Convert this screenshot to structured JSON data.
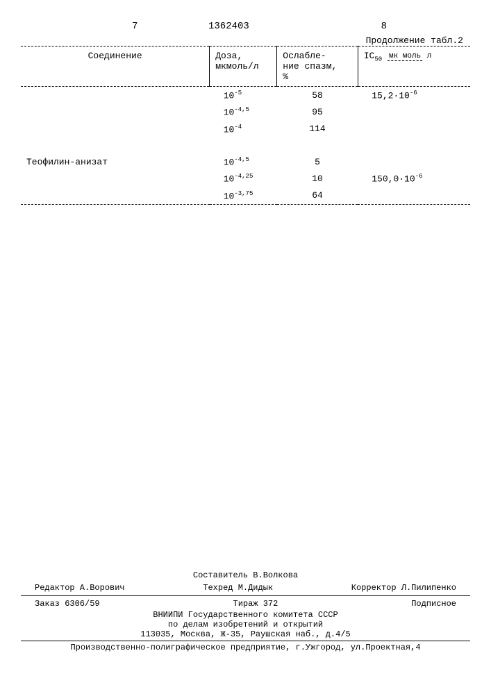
{
  "page_left": "7",
  "page_right": "8",
  "doc_number": "1362403",
  "continuation": "Продолжение табл.2",
  "headers": {
    "compound": "Соединение",
    "dose": "Доза,\nмкмоль/л",
    "spasm": "Ослабле-\nние спазм,\n%",
    "ic50_label": "IC",
    "ic50_sub": "50",
    "ic50_unit_top": "мк моль",
    "ic50_unit_bottom": "л"
  },
  "rows": [
    {
      "compound": "",
      "dose_base": "10",
      "dose_exp": "-5",
      "spasm": "58",
      "ic50_base": "15,2·10",
      "ic50_exp": "-6"
    },
    {
      "compound": "",
      "dose_base": "10",
      "dose_exp": "-4,5",
      "spasm": "95",
      "ic50_base": "",
      "ic50_exp": ""
    },
    {
      "compound": "",
      "dose_base": "10",
      "dose_exp": "-4",
      "spasm": "114",
      "ic50_base": "",
      "ic50_exp": ""
    },
    {
      "compound": "Теофилин-анизат",
      "dose_base": "10",
      "dose_exp": "-4,5",
      "spasm": "5",
      "ic50_base": "",
      "ic50_exp": ""
    },
    {
      "compound": "",
      "dose_base": "10",
      "dose_exp": "-4,25",
      "spasm": "10",
      "ic50_base": "150,0·10",
      "ic50_exp": "-6"
    },
    {
      "compound": "",
      "dose_base": "10",
      "dose_exp": "-3,75",
      "spasm": "64",
      "ic50_base": "",
      "ic50_exp": ""
    }
  ],
  "footer": {
    "compiler": "Составитель В.Волкова",
    "editor": "Редактор А.Ворович",
    "tehred": "Техред М.Дидык",
    "corrector": "Корректор Л.Пилипенко",
    "order": "Заказ 6306/59",
    "tirage": "Тираж 372",
    "subscription": "Подписное",
    "org1": "ВНИИПИ Государственного комитета СССР",
    "org2": "по делам изобретений и открытий",
    "address": "113035, Москва, Ж-35, Раушская наб., д.4/5",
    "printer": "Производственно-полиграфическое предприятие, г.Ужгород, ул.Проектная,4"
  }
}
